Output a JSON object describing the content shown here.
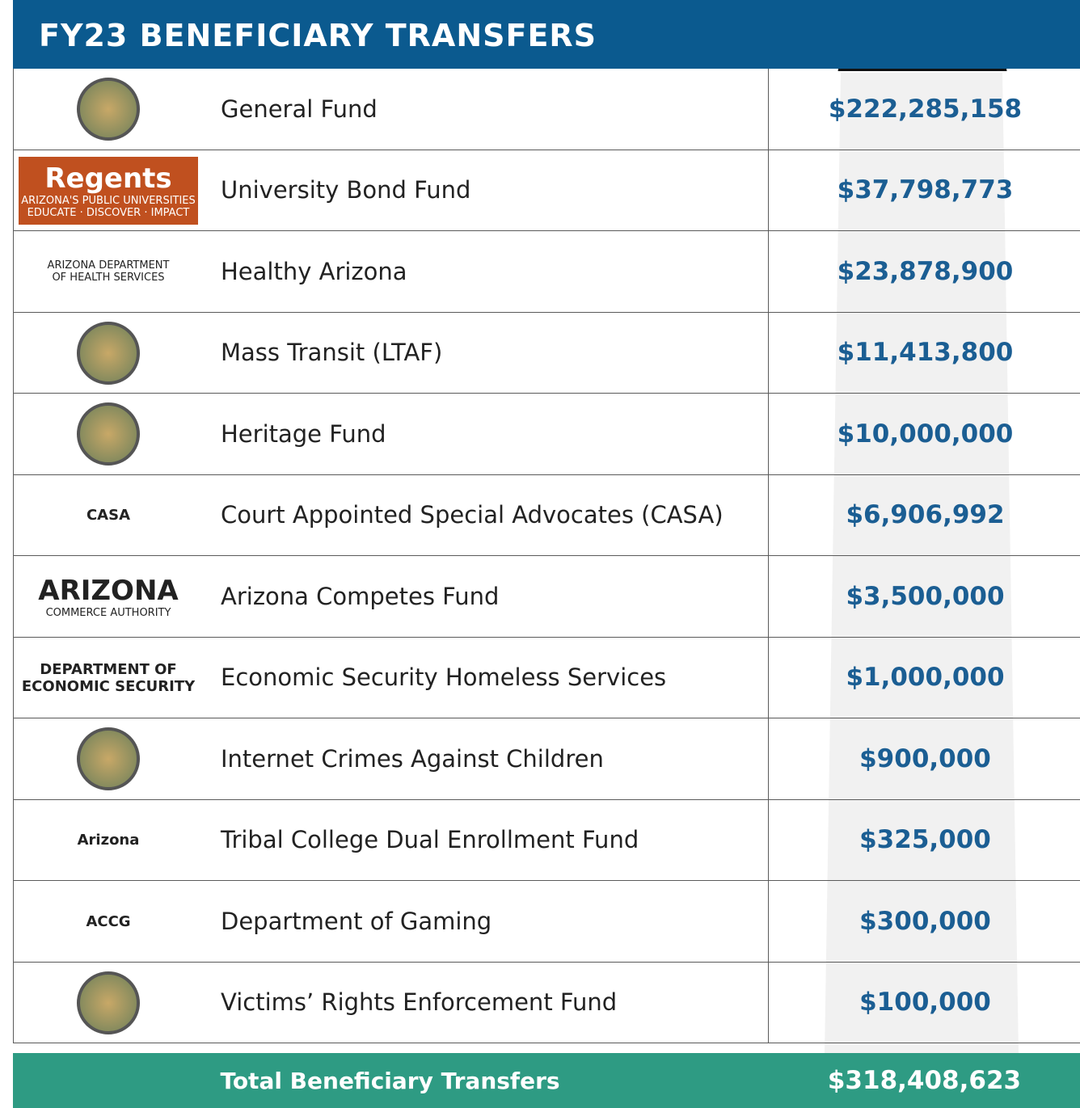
{
  "header": {
    "title": "FY23 BENEFICIARY TRANSFERS"
  },
  "table": {
    "rows": [
      {
        "name": "General Fund",
        "amount": "$222,285,158"
      },
      {
        "name": "University Bond Fund",
        "amount": "$37,798,773",
        "logo_text": [
          "Regents",
          "ARIZONA'S PUBLIC UNIVERSITIES",
          "EDUCATE · DISCOVER · IMPACT"
        ]
      },
      {
        "name": "Healthy Arizona",
        "amount": "$23,878,900",
        "logo_text": [
          "ARIZONA DEPARTMENT",
          "OF HEALTH SERVICES"
        ]
      },
      {
        "name": "Mass Transit (LTAF)",
        "amount": "$11,413,800"
      },
      {
        "name": "Heritage Fund",
        "amount": "$10,000,000"
      },
      {
        "name": "Court Appointed Special Advocates (CASA)",
        "amount": "$6,906,992",
        "logo_text": [
          "CASA"
        ]
      },
      {
        "name": "Arizona Competes Fund",
        "amount": "$3,500,000",
        "logo_text": [
          "ARIZONA",
          "COMMERCE AUTHORITY"
        ]
      },
      {
        "name": "Economic Security Homeless Services",
        "amount": "$1,000,000",
        "logo_text": [
          "DEPARTMENT OF ECONOMIC SECURITY"
        ]
      },
      {
        "name": "Internet Crimes Against Children",
        "amount": "$900,000"
      },
      {
        "name": "Tribal College Dual Enrollment Fund",
        "amount": "$325,000",
        "logo_text": [
          "Arizona"
        ]
      },
      {
        "name": "Department of Gaming",
        "amount": "$300,000",
        "logo_text": [
          "ACCG"
        ]
      },
      {
        "name": "Victims’ Rights Enforcement Fund",
        "amount": "$100,000"
      }
    ],
    "total": {
      "label": "Total Beneficiary Transfers",
      "amount": "$318,408,623"
    }
  }
}
